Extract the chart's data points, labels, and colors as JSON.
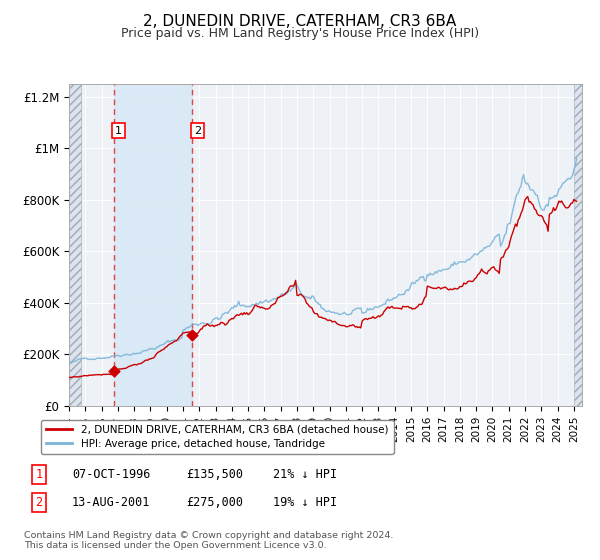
{
  "title": "2, DUNEDIN DRIVE, CATERHAM, CR3 6BA",
  "subtitle": "Price paid vs. HM Land Registry's House Price Index (HPI)",
  "title_fontsize": 11,
  "subtitle_fontsize": 9,
  "bg_color": "#ffffff",
  "plot_bg_color": "#eef2f7",
  "xmin": 1994.0,
  "xmax": 2025.5,
  "ymin": 0,
  "ymax": 1250000,
  "yticks": [
    0,
    200000,
    400000,
    600000,
    800000,
    1000000,
    1200000
  ],
  "ytick_labels": [
    "£0",
    "£200K",
    "£400K",
    "£600K",
    "£800K",
    "£1M",
    "£1.2M"
  ],
  "xticks": [
    1994,
    1995,
    1996,
    1997,
    1998,
    1999,
    2000,
    2001,
    2002,
    2003,
    2004,
    2005,
    2006,
    2007,
    2008,
    2009,
    2010,
    2011,
    2012,
    2013,
    2014,
    2015,
    2016,
    2017,
    2018,
    2019,
    2020,
    2021,
    2022,
    2023,
    2024,
    2025
  ],
  "purchase1_x": 1996.75,
  "purchase1_y": 135500,
  "purchase2_x": 2001.58,
  "purchase2_y": 275000,
  "red_line_color": "#cc0000",
  "blue_line_color": "#7bb3d9",
  "legend_line1": "2, DUNEDIN DRIVE, CATERHAM, CR3 6BA (detached house)",
  "legend_line2": "HPI: Average price, detached house, Tandridge",
  "table_row1": [
    "1",
    "07-OCT-1996",
    "£135,500",
    "21% ↓ HPI"
  ],
  "table_row2": [
    "2",
    "13-AUG-2001",
    "£275,000",
    "19% ↓ HPI"
  ],
  "footnote": "Contains HM Land Registry data © Crown copyright and database right 2024.\nThis data is licensed under the Open Government Licence v3.0."
}
